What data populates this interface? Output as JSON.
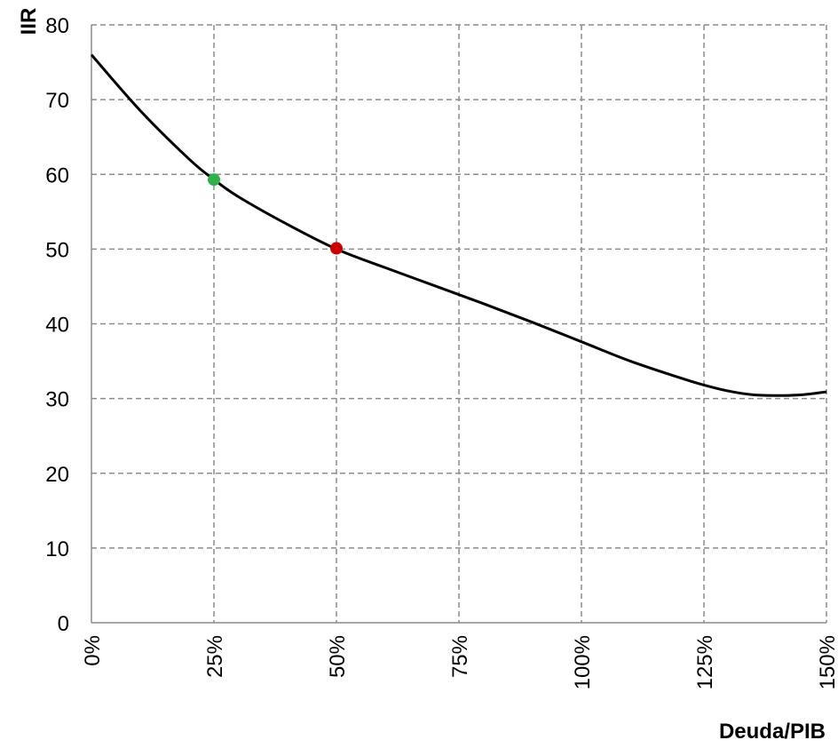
{
  "chart_data": {
    "type": "line",
    "title": "",
    "xlabel": "Deuda/PIB",
    "ylabel": "IIR",
    "xlim": [
      0,
      150
    ],
    "ylim": [
      0,
      80
    ],
    "x_ticks": [
      "0%",
      "25%",
      "50%",
      "75%",
      "100%",
      "125%",
      "150%"
    ],
    "y_ticks": [
      "0",
      "10",
      "20",
      "30",
      "40",
      "50",
      "60",
      "70",
      "80"
    ],
    "grid": true,
    "series": [
      {
        "color": "#000000",
        "x": [
          0,
          10,
          20,
          25,
          30,
          40,
          50,
          60,
          70,
          80,
          90,
          100,
          110,
          120,
          125,
          130,
          135,
          140,
          145,
          150
        ],
        "y": [
          76,
          68.5,
          62,
          59.3,
          57,
          53.3,
          50,
          47.5,
          45.1,
          42.7,
          40.2,
          37.6,
          35.0,
          32.8,
          31.8,
          31.0,
          30.5,
          30.4,
          30.5,
          30.9
        ]
      }
    ],
    "points": [
      {
        "x": 25,
        "y": 59.3,
        "color": "#2db34a"
      },
      {
        "x": 50,
        "y": 50.1,
        "color": "#cc0000"
      }
    ]
  }
}
